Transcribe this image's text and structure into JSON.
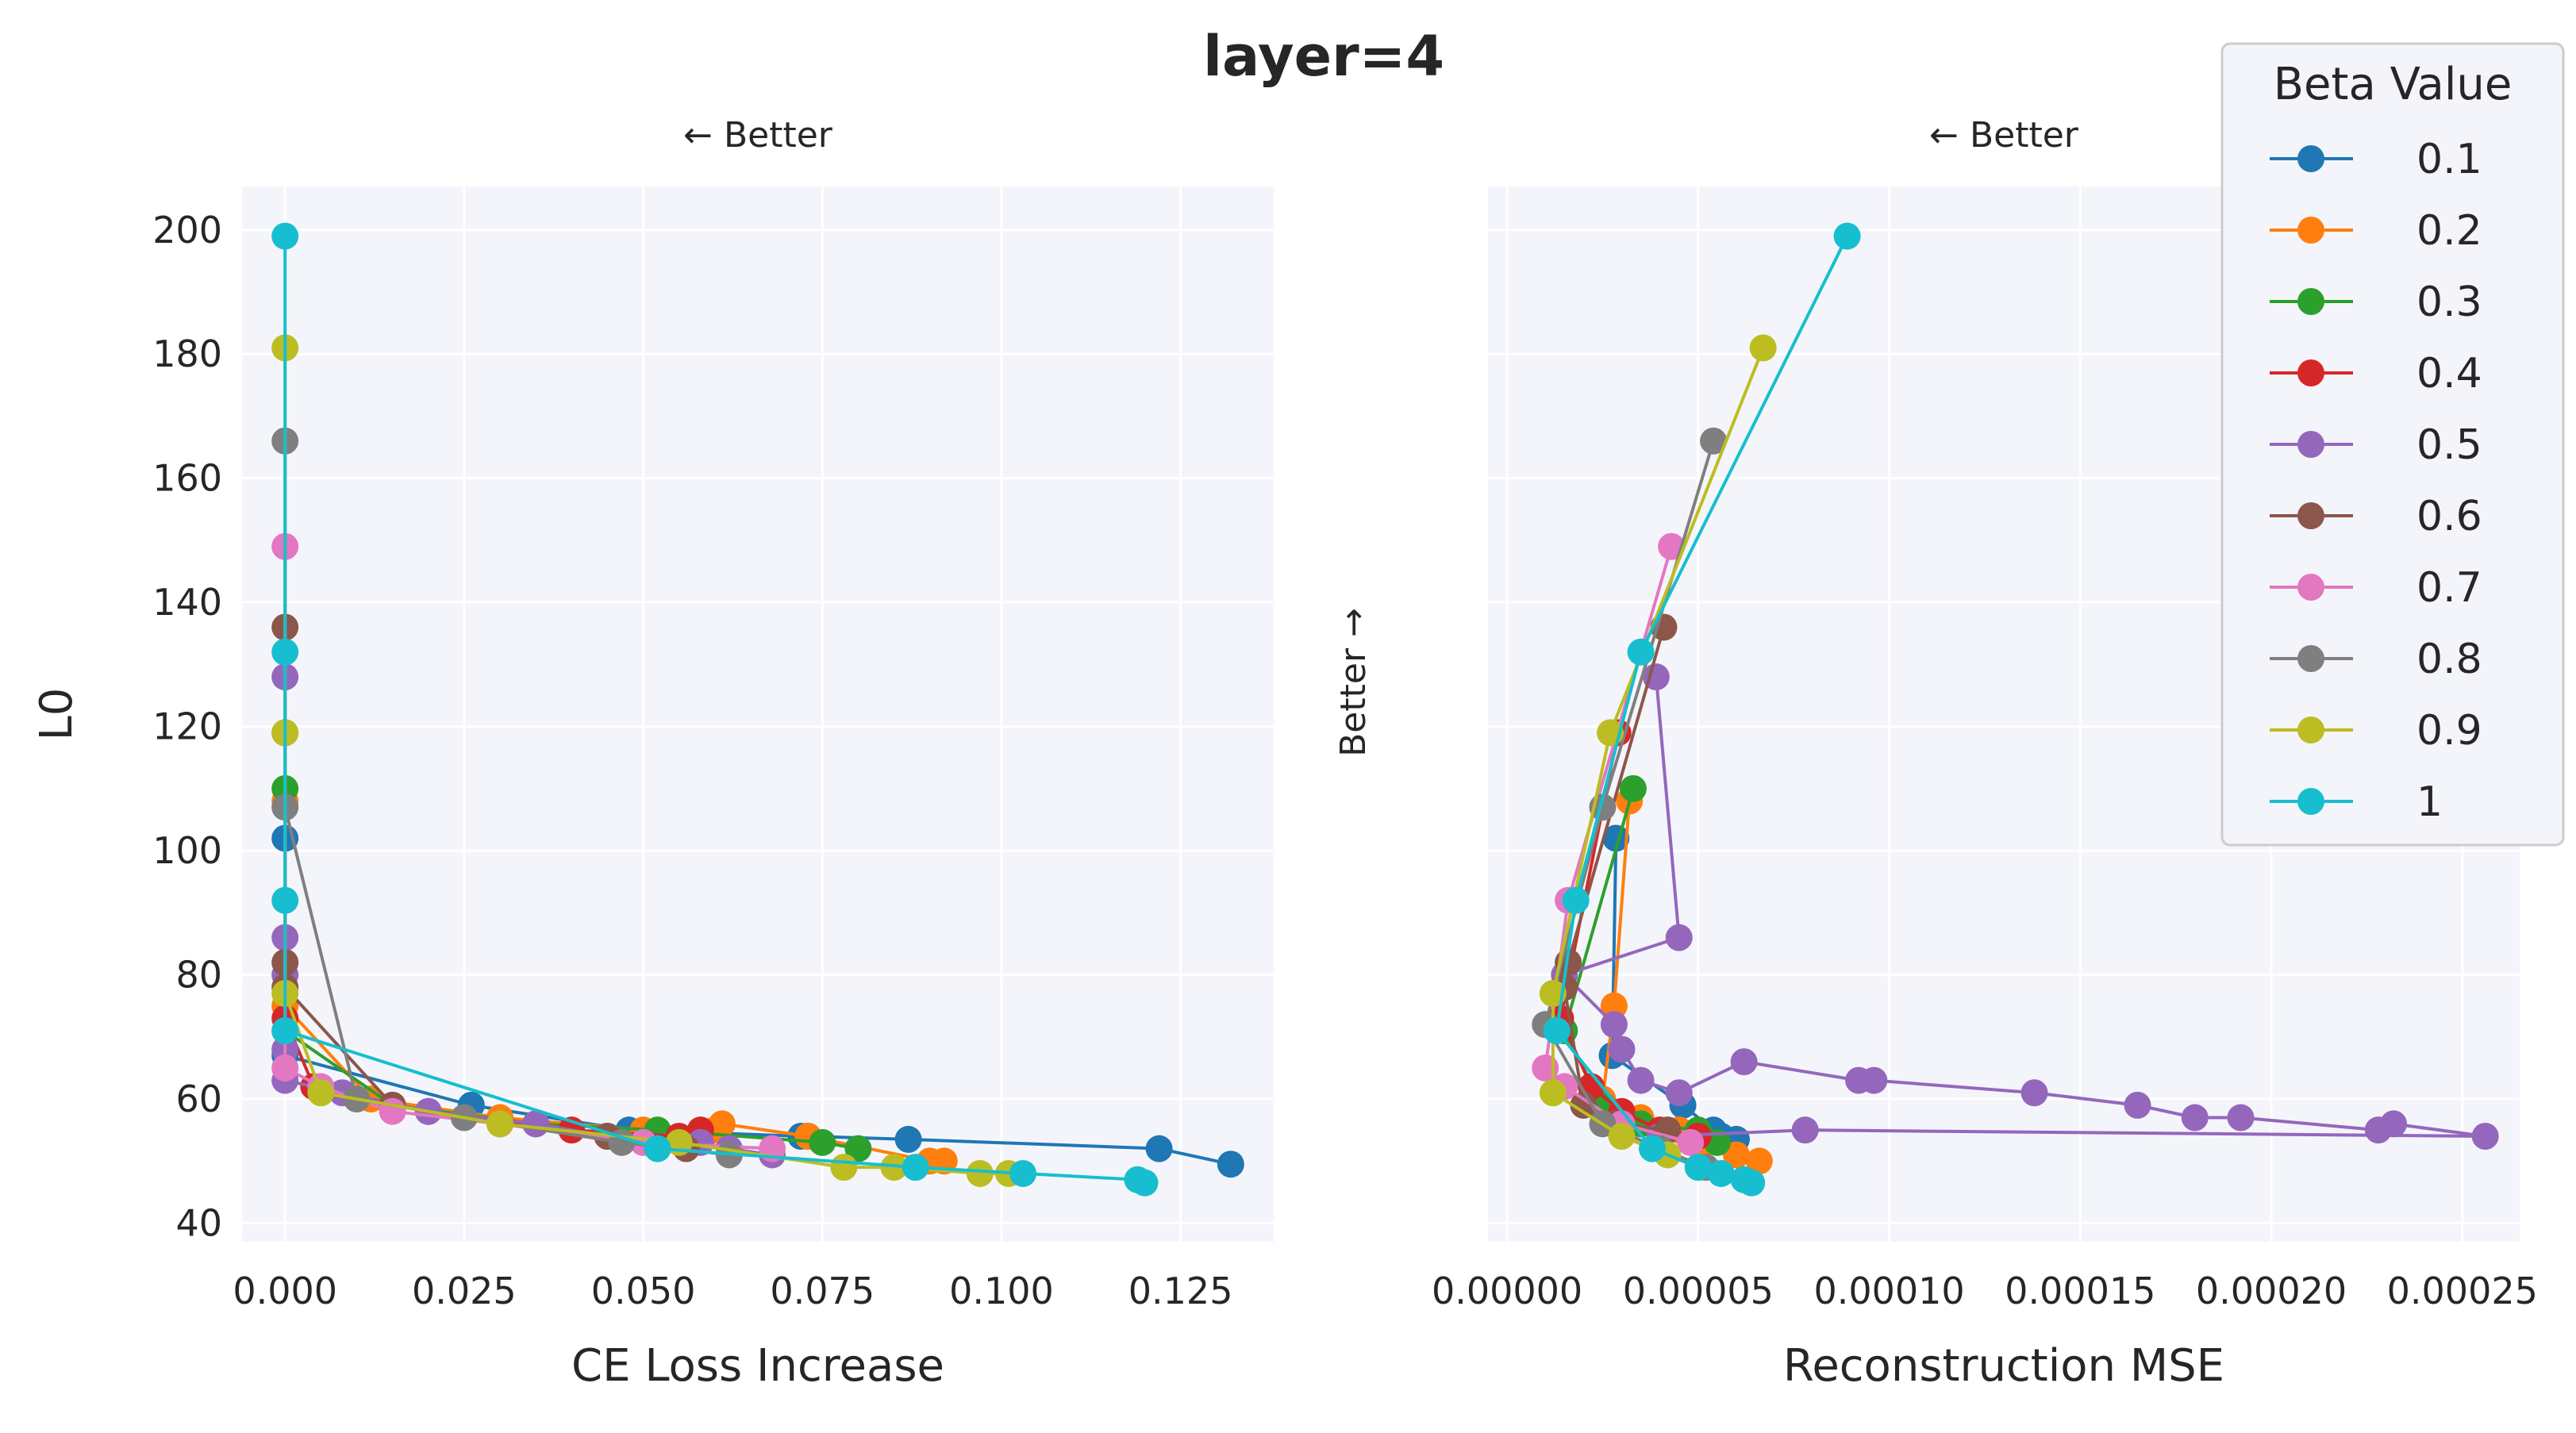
{
  "title": "layer=4",
  "colors": {
    "panel_background": "#f4f5fa",
    "grid": "#ffffff",
    "series": [
      "#1f77b4",
      "#ff7f0e",
      "#2ca02c",
      "#d62728",
      "#9467bd",
      "#8c564b",
      "#e377c2",
      "#7f7f7f",
      "#bcbd22",
      "#17becf"
    ]
  },
  "legend": {
    "title": "Beta Value",
    "placement": "top-right"
  },
  "chart_data": [
    {
      "type": "line",
      "xlabel": "CE Loss Increase",
      "ylabel": "L0",
      "better_x": "← Better",
      "xlim": [
        -0.006,
        0.138
      ],
      "ylim": [
        37,
        207
      ],
      "xticks": [
        0.0,
        0.025,
        0.05,
        0.075,
        0.1,
        0.125
      ],
      "xtick_labels": [
        "0.000",
        "0.025",
        "0.050",
        "0.075",
        "0.100",
        "0.125"
      ],
      "yticks": [
        40,
        60,
        80,
        100,
        120,
        140,
        160,
        180,
        200
      ],
      "ytick_labels": [
        "40",
        "60",
        "80",
        "100",
        "120",
        "140",
        "160",
        "180",
        "200"
      ],
      "grid": true,
      "series": [
        {
          "name": "0.1",
          "x": [
            0.0,
            0.0,
            0.026,
            0.048,
            0.072,
            0.073,
            0.087,
            0.122,
            0.132
          ],
          "y": [
            102,
            67,
            59,
            55,
            54,
            54,
            53.5,
            52,
            49.5
          ]
        },
        {
          "name": "0.2",
          "x": [
            0.0,
            0.0,
            0.012,
            0.03,
            0.05,
            0.06,
            0.061,
            0.073,
            0.09,
            0.092
          ],
          "y": [
            108,
            75,
            60,
            57,
            55,
            55,
            56,
            54,
            50,
            50
          ]
        },
        {
          "name": "0.3",
          "x": [
            0.0,
            0.0,
            0.015,
            0.035,
            0.052,
            0.075,
            0.08
          ],
          "y": [
            110,
            71,
            59,
            56,
            55,
            53,
            52
          ]
        },
        {
          "name": "0.4",
          "x": [
            0.0,
            0.0,
            0.004,
            0.02,
            0.04,
            0.055,
            0.058
          ],
          "y": [
            119,
            73,
            62,
            58,
            55,
            54,
            55
          ]
        },
        {
          "name": "0.5",
          "x": [
            0.0,
            0.0,
            0.0,
            0.0,
            0.0,
            0.008,
            0.02,
            0.035,
            0.045,
            0.058,
            0.062,
            0.068
          ],
          "y": [
            128,
            86,
            80,
            68,
            63,
            61,
            58,
            56,
            54,
            53,
            52,
            51
          ]
        },
        {
          "name": "0.6",
          "x": [
            0.0,
            0.0,
            0.0,
            0.015,
            0.03,
            0.045,
            0.056
          ],
          "y": [
            136,
            82,
            78,
            59,
            56,
            54,
            52
          ]
        },
        {
          "name": "0.7",
          "x": [
            0.0,
            0.0,
            0.005,
            0.015,
            0.03,
            0.05,
            0.068
          ],
          "y": [
            149,
            65,
            62,
            58,
            56,
            53,
            52
          ]
        },
        {
          "name": "0.8",
          "x": [
            0.0,
            0.0,
            0.01,
            0.025,
            0.047,
            0.062
          ],
          "y": [
            166,
            107,
            60,
            57,
            53,
            51
          ]
        },
        {
          "name": "0.9",
          "x": [
            0.0,
            0.0,
            0.0,
            0.005,
            0.03,
            0.055,
            0.078,
            0.085,
            0.097,
            0.101
          ],
          "y": [
            181,
            119,
            77,
            61,
            56,
            53,
            49,
            49,
            48,
            48
          ]
        },
        {
          "name": "1",
          "x": [
            0.0,
            0.0,
            0.0,
            0.0,
            0.052,
            0.088,
            0.103,
            0.119,
            0.12
          ],
          "y": [
            199,
            132,
            92,
            71,
            52,
            49,
            48,
            47,
            46.5
          ]
        }
      ]
    },
    {
      "type": "line",
      "xlabel": "Reconstruction MSE",
      "ylabel": "",
      "better_x": "← Better",
      "better_y": "Better →",
      "xlim": [
        -5e-06,
        0.000265
      ],
      "ylim": [
        37,
        207
      ],
      "xticks": [
        0.0,
        5e-05,
        0.0001,
        0.00015,
        0.0002,
        0.00025
      ],
      "xtick_labels": [
        "0.00000",
        "0.00005",
        "0.00010",
        "0.00015",
        "0.00020",
        "0.00025"
      ],
      "yticks": [
        40,
        60,
        80,
        100,
        120,
        140,
        160,
        180,
        200
      ],
      "grid": true,
      "series": [
        {
          "name": "0.1",
          "x": [
            2.85e-05,
            2.75e-05,
            4.6e-05,
            5.4e-05,
            5.6e-05,
            6e-05
          ],
          "y": [
            102,
            67,
            59,
            55,
            54,
            53.5
          ]
        },
        {
          "name": "0.2",
          "x": [
            3.2e-05,
            2.8e-05,
            2.5e-05,
            3.5e-05,
            4.5e-05,
            5.2e-05,
            6e-05,
            6.6e-05
          ],
          "y": [
            108,
            75,
            60,
            57,
            55,
            53,
            51,
            50
          ]
        },
        {
          "name": "0.3",
          "x": [
            3.3e-05,
            1.5e-05,
            2.5e-05,
            3.5e-05,
            5e-05,
            5.5e-05
          ],
          "y": [
            110,
            71,
            59,
            56,
            55,
            53
          ]
        },
        {
          "name": "0.4",
          "x": [
            2.9e-05,
            1.4e-05,
            2.2e-05,
            3e-05,
            4e-05,
            5e-05
          ],
          "y": [
            119,
            73,
            62,
            58,
            55,
            54
          ]
        },
        {
          "name": "0.5",
          "x": [
            3.9e-05,
            4.5e-05,
            1.5e-05,
            2.8e-05,
            3e-05,
            3.5e-05,
            4.5e-05,
            6.2e-05,
            9.2e-05,
            9.6e-05,
            0.000138,
            0.000165,
            0.00018,
            0.000192,
            0.000228,
            0.000232,
            0.000256,
            7.8e-05,
            4e-05
          ],
          "y": [
            128,
            86,
            80,
            72,
            68,
            63,
            61,
            66,
            63,
            63,
            61,
            59,
            57,
            57,
            55,
            56,
            54,
            55,
            54
          ]
        },
        {
          "name": "0.6",
          "x": [
            4.1e-05,
            1.6e-05,
            1.5e-05,
            2e-05,
            2.8e-05,
            4.2e-05
          ],
          "y": [
            136,
            82,
            78,
            59,
            56,
            55
          ]
        },
        {
          "name": "0.7",
          "x": [
            4.3e-05,
            1.6e-05,
            1e-05,
            1.5e-05,
            3e-05,
            4.8e-05
          ],
          "y": [
            149,
            92,
            65,
            62,
            56,
            53
          ]
        },
        {
          "name": "0.8",
          "x": [
            5.4e-05,
            2.5e-05,
            1e-05,
            2.5e-05,
            4e-05,
            5.2e-05
          ],
          "y": [
            166,
            107,
            72,
            56,
            52,
            49
          ]
        },
        {
          "name": "0.9",
          "x": [
            6.7e-05,
            2.7e-05,
            1.2e-05,
            1.2e-05,
            3e-05,
            4.2e-05,
            5e-05
          ],
          "y": [
            181,
            119,
            77,
            61,
            54,
            51,
            49
          ]
        },
        {
          "name": "1",
          "x": [
            8.9e-05,
            3.5e-05,
            1.8e-05,
            1.3e-05,
            3.8e-05,
            5e-05,
            5.6e-05,
            6.2e-05,
            6.4e-05
          ],
          "y": [
            199,
            132,
            92,
            71,
            52,
            49,
            48,
            47,
            46.5
          ]
        }
      ]
    }
  ]
}
